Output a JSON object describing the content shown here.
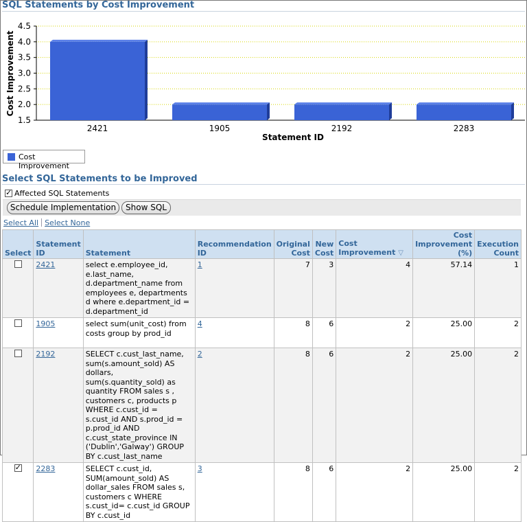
{
  "chart_section_title": "SQL Statements by Cost Improvement",
  "chart_data": {
    "type": "bar",
    "title": "",
    "xlabel": "Statement ID",
    "ylabel": "Cost Improvement",
    "categories": [
      "2421",
      "1905",
      "2192",
      "2283"
    ],
    "series": [
      {
        "name": "Cost Improvement",
        "values": [
          4,
          2,
          2,
          2
        ],
        "color": "#3a63d6"
      }
    ],
    "ylim": [
      1.5,
      4.5
    ],
    "yticks": [
      "1.5",
      "2.0",
      "2.5",
      "3.0",
      "3.5",
      "4.0",
      "4.5"
    ],
    "grid": true,
    "legend": "bottom-left"
  },
  "select_section_title": "Select SQL Statements to be Improved",
  "affected_label": "Affected SQL Statements",
  "affected_checked": true,
  "buttons": {
    "schedule": "Schedule Implementation",
    "show_sql": "Show SQL"
  },
  "links": {
    "select_all": "Select All",
    "select_none": "Select None"
  },
  "table": {
    "headers": {
      "select": "Select",
      "statement_id": "Statement ID",
      "statement": "Statement",
      "recommendation_id": "Recommendation ID",
      "original_cost": "Original Cost",
      "new_cost": "New Cost",
      "cost_improvement": "Cost Improvement",
      "cost_improvement_pct": "Cost Improvement (%)",
      "execution_count": "Execution Count"
    },
    "sorted_column": "cost_improvement",
    "rows": [
      {
        "checked": false,
        "statement_id": "2421",
        "statement": "select e.employee_id, e.last_name, d.department_name from employees e, departments d where e.department_id = d.department_id",
        "recommendation_id": "1",
        "original_cost": "7",
        "new_cost": "3",
        "cost_improvement": "4",
        "cost_improvement_pct": "57.14",
        "execution_count": "1"
      },
      {
        "checked": false,
        "statement_id": "1905",
        "statement": "select sum(unit_cost) from costs group by prod_id",
        "recommendation_id": "4",
        "original_cost": "8",
        "new_cost": "6",
        "cost_improvement": "2",
        "cost_improvement_pct": "25.00",
        "execution_count": "2"
      },
      {
        "checked": false,
        "statement_id": "2192",
        "statement": "SELECT c.cust_last_name, sum(s.amount_sold) AS dollars, sum(s.quantity_sold) as quantity FROM sales s , customers c, products p WHERE c.cust_id = s.cust_id AND s.prod_id = p.prod_id AND c.cust_state_province IN ('Dublin','Galway') GROUP BY c.cust_last_name",
        "recommendation_id": "2",
        "original_cost": "8",
        "new_cost": "6",
        "cost_improvement": "2",
        "cost_improvement_pct": "25.00",
        "execution_count": "2"
      },
      {
        "checked": true,
        "statement_id": "2283",
        "statement": "SELECT c.cust_id, SUM(amount_sold) AS dollar_sales FROM sales s, customers c WHERE s.cust_id= c.cust_id GROUP BY c.cust_id",
        "recommendation_id": "3",
        "original_cost": "8",
        "new_cost": "6",
        "cost_improvement": "2",
        "cost_improvement_pct": "25.00",
        "execution_count": "2"
      }
    ]
  }
}
